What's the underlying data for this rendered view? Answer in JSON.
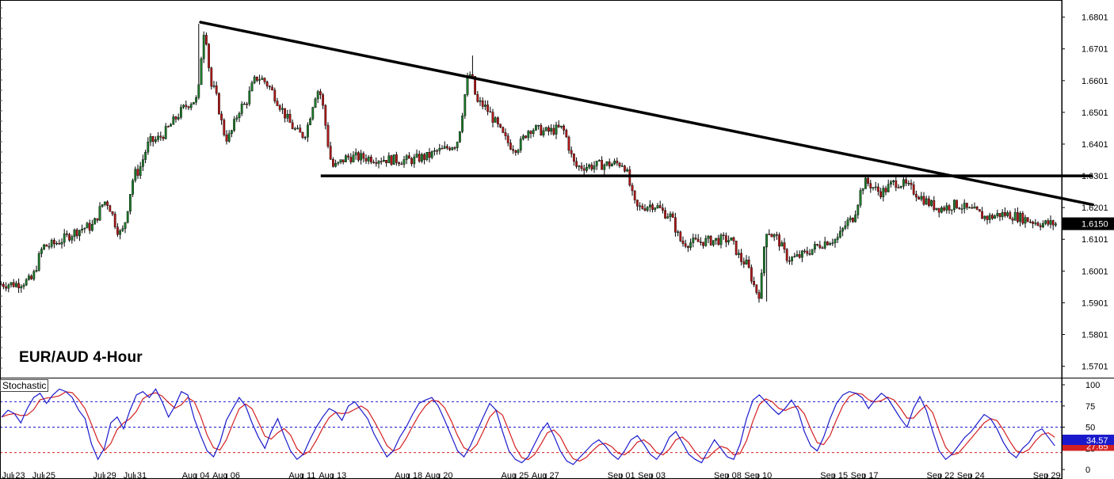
{
  "title": "EUR/AUD 4-Hour",
  "indicator_label": "Stochastic",
  "colors": {
    "bull": "#1c7a2a",
    "bear": "#b01818",
    "wick": "#000000",
    "trendline": "#000000",
    "k_line": "#1a1acc",
    "d_line": "#d42020",
    "level_80": "#1a1acc",
    "level_50": "#1a1acc",
    "level_20": "#d42020",
    "price_tag_bg": "#000000",
    "k_tag_bg": "#1a1acc",
    "d_tag_bg": "#d42020"
  },
  "chart_data": [
    {
      "type": "candlestick",
      "title": "EUR/AUD 4-Hour",
      "x_tick_labels": [
        "Jul 23",
        "Jul 25",
        "Jul 29",
        "Jul 31",
        "Aug 04",
        "Aug 06",
        "Aug 11",
        "Aug 13",
        "Aug 18",
        "Aug 20",
        "Aug 25",
        "Aug 27",
        "Sep 01",
        "Sep 03",
        "Sep 08",
        "Sep 10",
        "Sep 15",
        "Sep 17",
        "Sep 22",
        "Sep 24",
        "Sep 29"
      ],
      "y_tick_labels": [
        "1.6801",
        "1.6701",
        "1.6601",
        "1.6501",
        "1.6401",
        "1.6301",
        "1.6201",
        "1.6101",
        "1.6001",
        "1.5901",
        "1.5801",
        "1.5701"
      ],
      "ylim": [
        1.5665,
        1.6855
      ],
      "current_price": "1.6150",
      "anchors": [
        {
          "date": "Jul 23",
          "price": 1.596
        },
        {
          "date": "Jul 24",
          "price": 1.597
        },
        {
          "date": "Jul 25",
          "price": 1.608
        },
        {
          "date": "Jul 28",
          "price": 1.614
        },
        {
          "date": "Jul 29",
          "price": 1.622
        },
        {
          "date": "Jul 30",
          "price": 1.612
        },
        {
          "date": "Jul 31",
          "price": 1.631
        },
        {
          "date": "Aug 01",
          "price": 1.641
        },
        {
          "date": "Aug 04",
          "price": 1.654
        },
        {
          "date": "Aug 04",
          "price": 1.676
        },
        {
          "date": "Aug 05",
          "price": 1.658
        },
        {
          "date": "Aug 06",
          "price": 1.642
        },
        {
          "date": "Aug 07",
          "price": 1.652
        },
        {
          "date": "Aug 08",
          "price": 1.661
        },
        {
          "date": "Aug 11",
          "price": 1.643
        },
        {
          "date": "Aug 12",
          "price": 1.657
        },
        {
          "date": "Aug 13",
          "price": 1.633
        },
        {
          "date": "Aug 14",
          "price": 1.636
        },
        {
          "date": "Aug 18",
          "price": 1.635
        },
        {
          "date": "Aug 19",
          "price": 1.636
        },
        {
          "date": "Aug 20",
          "price": 1.638
        },
        {
          "date": "Aug 21",
          "price": 1.64
        },
        {
          "date": "Aug 22",
          "price": 1.662
        },
        {
          "date": "Aug 22",
          "price": 1.653
        },
        {
          "date": "Aug 25",
          "price": 1.639
        },
        {
          "date": "Aug 26",
          "price": 1.645
        },
        {
          "date": "Aug 27",
          "price": 1.644
        },
        {
          "date": "Aug 28",
          "price": 1.645
        },
        {
          "date": "Aug 29",
          "price": 1.633
        },
        {
          "date": "Sep 01",
          "price": 1.634
        },
        {
          "date": "Sep 02",
          "price": 1.62
        },
        {
          "date": "Sep 03",
          "price": 1.621
        },
        {
          "date": "Sep 04",
          "price": 1.618
        },
        {
          "date": "Sep 05",
          "price": 1.609
        },
        {
          "date": "Sep 08",
          "price": 1.61
        },
        {
          "date": "Sep 09",
          "price": 1.603
        },
        {
          "date": "Sep 10",
          "price": 1.593
        },
        {
          "date": "Sep 10",
          "price": 1.613
        },
        {
          "date": "Sep 11",
          "price": 1.611
        },
        {
          "date": "Sep 12",
          "price": 1.604
        },
        {
          "date": "Sep 15",
          "price": 1.61
        },
        {
          "date": "Sep 16",
          "price": 1.616
        },
        {
          "date": "Sep 17",
          "price": 1.628
        },
        {
          "date": "Sep 18",
          "price": 1.625
        },
        {
          "date": "Sep 19",
          "price": 1.628
        },
        {
          "date": "Sep 22",
          "price": 1.62
        },
        {
          "date": "Sep 23",
          "price": 1.621
        },
        {
          "date": "Sep 24",
          "price": 1.619
        },
        {
          "date": "Sep 25",
          "price": 1.617
        },
        {
          "date": "Sep 26",
          "price": 1.618
        },
        {
          "date": "Sep 29",
          "price": 1.615
        }
      ],
      "wick_extremes": [
        {
          "date": "Aug 04",
          "high": 1.678
        },
        {
          "date": "Aug 22",
          "high": 1.668
        },
        {
          "date": "Sep 10",
          "low": 1.5905
        }
      ],
      "annotations": [
        {
          "type": "descending_trendline",
          "from": {
            "date": "Aug 04",
            "price": 1.6785
          },
          "to": {
            "date": "Sep 29",
            "price": 1.621
          }
        },
        {
          "type": "horizontal_support",
          "price": 1.6301,
          "from_date": "Aug 13",
          "to_date": "Sep 29"
        }
      ]
    },
    {
      "type": "line",
      "title": "Stochastic",
      "ylim": [
        0,
        100
      ],
      "y_tick_labels": [
        "100",
        "75",
        "50",
        "25",
        "0"
      ],
      "levels": [
        80,
        50,
        20
      ],
      "k_value": "34.57",
      "d_value": "27.65",
      "series": [
        {
          "key": "k",
          "values": [
            62,
            70,
            66,
            55,
            72,
            85,
            90,
            78,
            88,
            95,
            92,
            85,
            70,
            60,
            30,
            12,
            25,
            55,
            62,
            48,
            70,
            88,
            92,
            85,
            95,
            80,
            62,
            75,
            92,
            88,
            60,
            40,
            22,
            15,
            32,
            58,
            72,
            85,
            75,
            55,
            38,
            25,
            45,
            60,
            40,
            22,
            12,
            18,
            35,
            50,
            62,
            72,
            68,
            58,
            75,
            80,
            70,
            60,
            42,
            28,
            15,
            22,
            38,
            50,
            65,
            78,
            82,
            85,
            75,
            58,
            40,
            22,
            15,
            28,
            45,
            62,
            78,
            70,
            45,
            22,
            12,
            8,
            15,
            30,
            45,
            55,
            40,
            22,
            10,
            6,
            14,
            22,
            30,
            35,
            28,
            18,
            12,
            22,
            35,
            40,
            30,
            18,
            12,
            22,
            38,
            45,
            32,
            18,
            12,
            8,
            22,
            35,
            25,
            15,
            12,
            30,
            60,
            82,
            88,
            80,
            72,
            65,
            72,
            82,
            70,
            45,
            28,
            22,
            38,
            60,
            78,
            88,
            92,
            90,
            85,
            72,
            82,
            90,
            84,
            72,
            60,
            50,
            72,
            86,
            70,
            45,
            22,
            12,
            18,
            28,
            38,
            45,
            55,
            65,
            60,
            48,
            32,
            20,
            14,
            25,
            32,
            44,
            48,
            38,
            28
          ]
        }
      ]
    }
  ]
}
